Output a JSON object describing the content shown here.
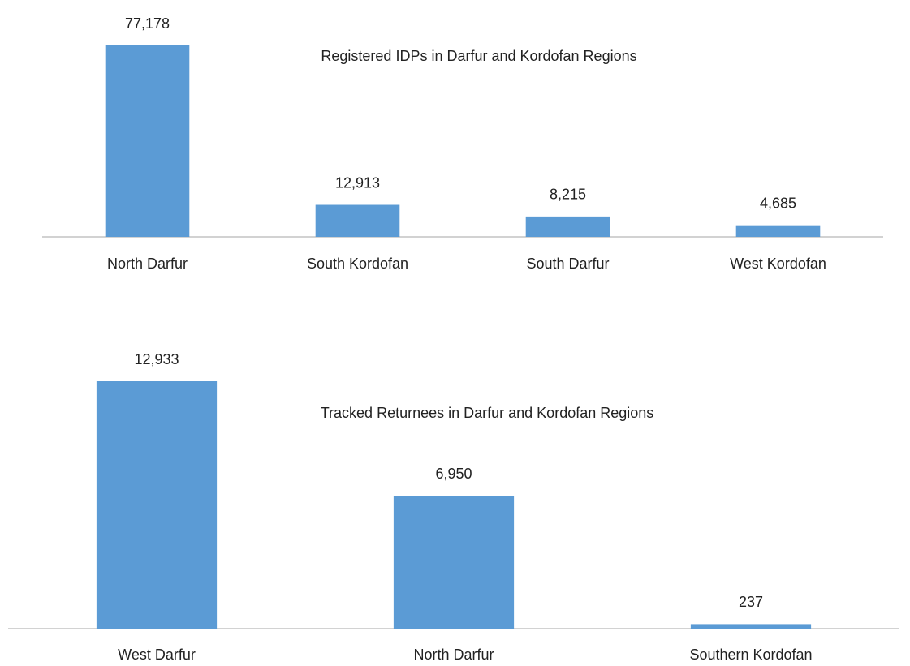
{
  "chart_data": [
    {
      "type": "bar",
      "title": "Registered IDPs in Darfur and Kordofan Regions",
      "categories": [
        "North Darfur",
        "South Kordofan",
        "South Darfur",
        "West Kordofan"
      ],
      "values": [
        77178,
        12913,
        8215,
        4685
      ],
      "value_labels": [
        "77,178",
        "12,913",
        "8,215",
        "4,685"
      ],
      "color": "#5b9bd5"
    },
    {
      "type": "bar",
      "title": "Tracked Returnees in Darfur and Kordofan Regions",
      "categories": [
        "West Darfur",
        "North Darfur",
        "Southern Kordofan"
      ],
      "values": [
        12933,
        6950,
        237
      ],
      "value_labels": [
        "12,933",
        "6,950",
        "237"
      ],
      "color": "#5b9bd5"
    }
  ]
}
